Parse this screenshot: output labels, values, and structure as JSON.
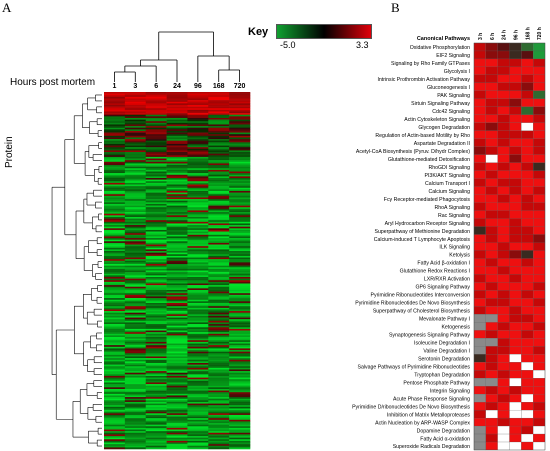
{
  "panel_a_letter": "A",
  "panel_b_letter": "B",
  "key": {
    "title": "Key",
    "min_label": "-5.0",
    "max_label": "3.3",
    "low_color": "#10a030",
    "mid_color": "#000000",
    "high_color": "#e0000a"
  },
  "chart_data": [
    {
      "type": "heatmap",
      "xlabel": "Hours post mortem",
      "ylabel": "Protein",
      "categories": [
        "1",
        "3",
        "6",
        "24",
        "96",
        "168",
        "720"
      ],
      "value_range": [
        -5.0,
        3.3
      ],
      "row_groups": [
        {
          "rows": 14,
          "pattern": "red-top"
        },
        {
          "rows": 26,
          "pattern": "mixed-dark"
        },
        {
          "rows": 180,
          "pattern": "green-majority"
        }
      ]
    },
    {
      "type": "heatmap",
      "row_header": "Canonical Pathways",
      "categories": [
        "3 h",
        "6 h",
        "24 h",
        "96 h",
        "168 h",
        "720 h"
      ],
      "rows": [
        {
          "label": "Oxidative Phosphorylation",
          "values": [
            2,
            1,
            0,
            -1,
            -2,
            -3
          ]
        },
        {
          "label": "EIF2 Signaling",
          "values": [
            2,
            1,
            1,
            -1,
            0,
            -3
          ]
        },
        {
          "label": "Signaling by Rho Family GTPases",
          "values": [
            3,
            3,
            2,
            2,
            3,
            2
          ]
        },
        {
          "label": "Glycolysis I",
          "values": [
            3,
            2,
            2,
            3,
            3,
            3
          ]
        },
        {
          "label": "Intrinsic Prothrombin Activation Pathway",
          "values": [
            2,
            2,
            3,
            3,
            2,
            3
          ]
        },
        {
          "label": "Gluconeogenesis I",
          "values": [
            3,
            3,
            2,
            2,
            1,
            3
          ]
        },
        {
          "label": "PAK Signaling",
          "values": [
            2,
            3,
            3,
            3,
            2,
            -2
          ]
        },
        {
          "label": "Sirtuin Signaling Pathway",
          "values": [
            3,
            2,
            2,
            1,
            3,
            3
          ]
        },
        {
          "label": "Cdc42 Signaling",
          "values": [
            3,
            2,
            3,
            2,
            -2,
            1
          ]
        },
        {
          "label": "Actin Cytoskeleton Signaling",
          "values": [
            3,
            3,
            2,
            3,
            3,
            2
          ]
        },
        {
          "label": "Glycogen Degradation",
          "values": [
            2,
            1,
            2,
            3,
            "x",
            3
          ]
        },
        {
          "label": "Regulation of Actin-based Motility by Rho",
          "values": [
            3,
            3,
            2,
            2,
            2,
            3
          ]
        },
        {
          "label": "Aspartate Degradation II",
          "values": [
            2,
            3,
            2,
            3,
            3,
            2
          ]
        },
        {
          "label": "Acetyl-CoA Biosynthesis (Pyruv. D/hydr Complex)",
          "values": [
            1,
            2,
            3,
            2,
            3,
            2
          ]
        },
        {
          "label": "Glutathione-mediated Detoxification",
          "values": [
            3,
            "x",
            3,
            1,
            3,
            3
          ]
        },
        {
          "label": "RhoGDI Signaling",
          "values": [
            2,
            3,
            2,
            3,
            2,
            -1
          ]
        },
        {
          "label": "PI3K/AKT Signaling",
          "values": [
            3,
            2,
            3,
            3,
            3,
            2
          ]
        },
        {
          "label": "Calcium Transport I",
          "values": [
            2,
            3,
            2,
            2,
            3,
            3
          ]
        },
        {
          "label": "Calcium Signaling",
          "values": [
            3,
            2,
            3,
            2,
            3,
            2
          ]
        },
        {
          "label": "Fcγ Receptor-mediated Phagocytosis",
          "values": [
            3,
            3,
            2,
            3,
            2,
            3
          ]
        },
        {
          "label": "RhoA Signaling",
          "values": [
            2,
            3,
            3,
            3,
            2,
            2
          ]
        },
        {
          "label": "Rac Signaling",
          "values": [
            3,
            2,
            2,
            3,
            3,
            3
          ]
        },
        {
          "label": "Aryl Hydrocarbon Receptor Signaling",
          "values": [
            2,
            3,
            3,
            2,
            3,
            3
          ]
        },
        {
          "label": "Superpathway of Methionine Degradation",
          "values": [
            -1,
            2,
            3,
            2,
            2,
            3
          ]
        },
        {
          "label": "Calcium-induced T Lymphocyte Apoptosis",
          "values": [
            3,
            2,
            3,
            2,
            2,
            1
          ]
        },
        {
          "label": "ILK Signaling",
          "values": [
            3,
            3,
            2,
            3,
            3,
            2
          ]
        },
        {
          "label": "Ketolysis",
          "values": [
            2,
            3,
            2,
            1,
            -1,
            3
          ]
        },
        {
          "label": "Fatty Acid β-oxidation I",
          "values": [
            3,
            2,
            3,
            3,
            2,
            3
          ]
        },
        {
          "label": "Glutathione Redox Reactions I",
          "values": [
            3,
            3,
            2,
            3,
            3,
            3
          ]
        },
        {
          "label": "LXR/RXR Activation",
          "values": [
            2,
            3,
            3,
            2,
            3,
            3
          ]
        },
        {
          "label": "GP6 Signaling Pathway",
          "values": [
            3,
            2,
            3,
            3,
            3,
            2
          ]
        },
        {
          "label": "Pyrimidine Ribonucleotides Interconversion",
          "values": [
            2,
            3,
            2,
            3,
            2,
            3
          ]
        },
        {
          "label": "Pyrimidine Ribonucleotides De Novo Biosynthesis",
          "values": [
            3,
            2,
            2,
            3,
            3,
            2
          ]
        },
        {
          "label": "Superpathway of Cholesterol Biosynthesis",
          "values": [
            2,
            3,
            3,
            2,
            3,
            3
          ]
        },
        {
          "label": "Mevalonate Pathway I",
          "values": [
            "g",
            "g",
            3,
            2,
            2,
            3
          ]
        },
        {
          "label": "Ketogenesis",
          "values": [
            "g",
            3,
            2,
            3,
            3,
            2
          ]
        },
        {
          "label": "Synaptogenesis Signaling Pathway",
          "values": [
            3,
            2,
            3,
            3,
            2,
            3
          ]
        },
        {
          "label": "Isoleucine Degradation I",
          "values": [
            "g",
            "g",
            2,
            3,
            3,
            3
          ]
        },
        {
          "label": "Valine Degradation I",
          "values": [
            "g",
            2,
            2,
            3,
            3,
            2
          ]
        },
        {
          "label": "Serotonin Degradation",
          "values": [
            -1,
            2,
            3,
            "x",
            3,
            3
          ]
        },
        {
          "label": "Salvage Pathways of Pyrimidine Ribonucleotides",
          "values": [
            3,
            2,
            3,
            3,
            "x",
            3
          ]
        },
        {
          "label": "Tryptophan Degradation",
          "values": [
            2,
            3,
            2,
            3,
            3,
            "x"
          ]
        },
        {
          "label": "Pentose Phosphate Pathway",
          "values": [
            "g",
            "g",
            3,
            "x",
            3,
            3
          ]
        },
        {
          "label": "Integrin Signaling",
          "values": [
            3,
            2,
            3,
            2,
            3,
            3
          ]
        },
        {
          "label": "Acute Phase Response Signaling",
          "values": [
            "g",
            3,
            2,
            3,
            "x",
            3
          ]
        },
        {
          "label": "Pyrimidine D/ribonucleotides De Novo Biosynthesis",
          "values": [
            3,
            2,
            3,
            "x",
            3,
            2
          ]
        },
        {
          "label": "Inhibition of Matrix Metalloproteases",
          "values": [
            2,
            "x",
            3,
            "x",
            "x",
            3
          ]
        },
        {
          "label": "Actin Nucleation by ARP-WASP Complex",
          "values": [
            3,
            3,
            2,
            3,
            3,
            2
          ]
        },
        {
          "label": "Dopamine Degradation",
          "values": [
            "g",
            3,
            "x",
            3,
            2,
            "x"
          ]
        },
        {
          "label": "Fatty Acid α-oxidation",
          "values": [
            "g",
            2,
            "x",
            3,
            "x",
            3
          ]
        },
        {
          "label": "Superoxide Radicals Degradation",
          "values": [
            "g",
            3,
            "x",
            "x",
            3,
            "x"
          ]
        }
      ]
    }
  ]
}
